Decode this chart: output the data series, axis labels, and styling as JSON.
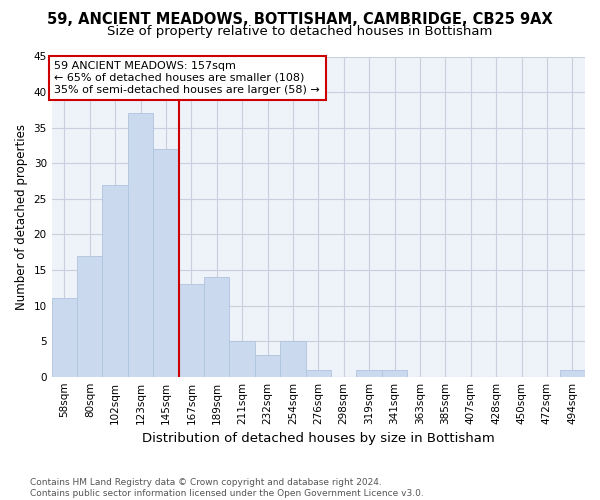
{
  "title": "59, ANCIENT MEADOWS, BOTTISHAM, CAMBRIDGE, CB25 9AX",
  "subtitle": "Size of property relative to detached houses in Bottisham",
  "xlabel": "Distribution of detached houses by size in Bottisham",
  "ylabel": "Number of detached properties",
  "bar_labels": [
    "58sqm",
    "80sqm",
    "102sqm",
    "123sqm",
    "145sqm",
    "167sqm",
    "189sqm",
    "211sqm",
    "232sqm",
    "254sqm",
    "276sqm",
    "298sqm",
    "319sqm",
    "341sqm",
    "363sqm",
    "385sqm",
    "407sqm",
    "428sqm",
    "450sqm",
    "472sqm",
    "494sqm"
  ],
  "bar_values": [
    11,
    17,
    27,
    37,
    32,
    13,
    14,
    5,
    3,
    5,
    1,
    0,
    1,
    1,
    0,
    0,
    0,
    0,
    0,
    0,
    1
  ],
  "bar_color": "#cad9ed",
  "bar_edge_color": "#afc4de",
  "annotation_line1": "59 ANCIENT MEADOWS: 157sqm",
  "annotation_line2": "← 65% of detached houses are smaller (108)",
  "annotation_line3": "35% of semi-detached houses are larger (58) →",
  "vline_x": 4.5,
  "vline_color": "#cc0000",
  "annotation_box_color": "#cc0000",
  "background_color": "#eef2f9",
  "grid_color": "#c8d0e0",
  "ylim": [
    0,
    45
  ],
  "yticks": [
    0,
    5,
    10,
    15,
    20,
    25,
    30,
    35,
    40,
    45
  ],
  "footnote": "Contains HM Land Registry data © Crown copyright and database right 2024.\nContains public sector information licensed under the Open Government Licence v3.0.",
  "title_fontsize": 10.5,
  "subtitle_fontsize": 9.5,
  "xlabel_fontsize": 9.5,
  "ylabel_fontsize": 8.5,
  "tick_fontsize": 7.5,
  "annotation_fontsize": 8,
  "footnote_fontsize": 6.5
}
